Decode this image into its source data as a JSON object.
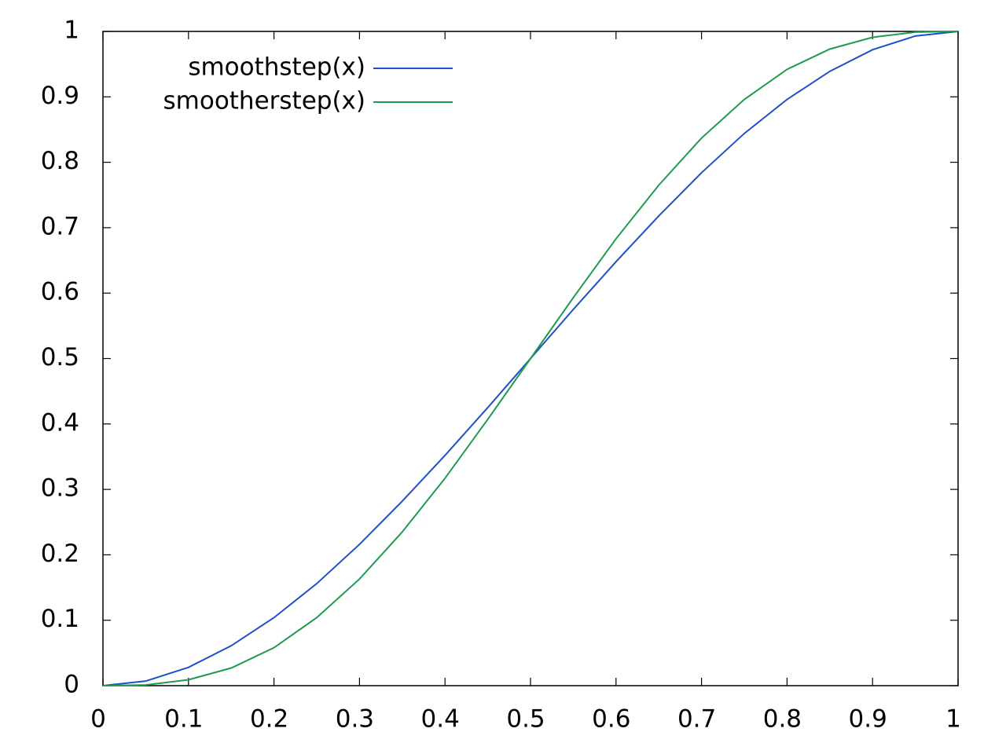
{
  "chart_data": {
    "type": "line",
    "x": [
      0,
      0.05,
      0.1,
      0.15,
      0.2,
      0.25,
      0.3,
      0.35,
      0.4,
      0.45,
      0.5,
      0.55,
      0.6,
      0.65,
      0.7,
      0.75,
      0.8,
      0.85,
      0.9,
      0.95,
      1
    ],
    "series": [
      {
        "name": "smoothstep(x)",
        "color": "#1f4fc7",
        "values": [
          0,
          0.007,
          0.028,
          0.061,
          0.104,
          0.156,
          0.216,
          0.282,
          0.352,
          0.425,
          0.5,
          0.575,
          0.648,
          0.718,
          0.784,
          0.844,
          0.896,
          0.939,
          0.972,
          0.993,
          1
        ]
      },
      {
        "name": "smootherstep(x)",
        "color": "#1f9a4f",
        "values": [
          0,
          0.001,
          0.009,
          0.027,
          0.058,
          0.104,
          0.163,
          0.235,
          0.317,
          0.407,
          0.5,
          0.593,
          0.683,
          0.765,
          0.837,
          0.896,
          0.942,
          0.973,
          0.991,
          0.999,
          1
        ]
      }
    ],
    "xlim": [
      0,
      1
    ],
    "ylim": [
      0,
      1
    ],
    "xticks": [
      0,
      0.1,
      0.2,
      0.3,
      0.4,
      0.5,
      0.6,
      0.7,
      0.8,
      0.9,
      1
    ],
    "yticks": [
      0,
      0.1,
      0.2,
      0.3,
      0.4,
      0.5,
      0.6,
      0.7,
      0.8,
      0.9,
      1
    ],
    "legend": "top left"
  }
}
